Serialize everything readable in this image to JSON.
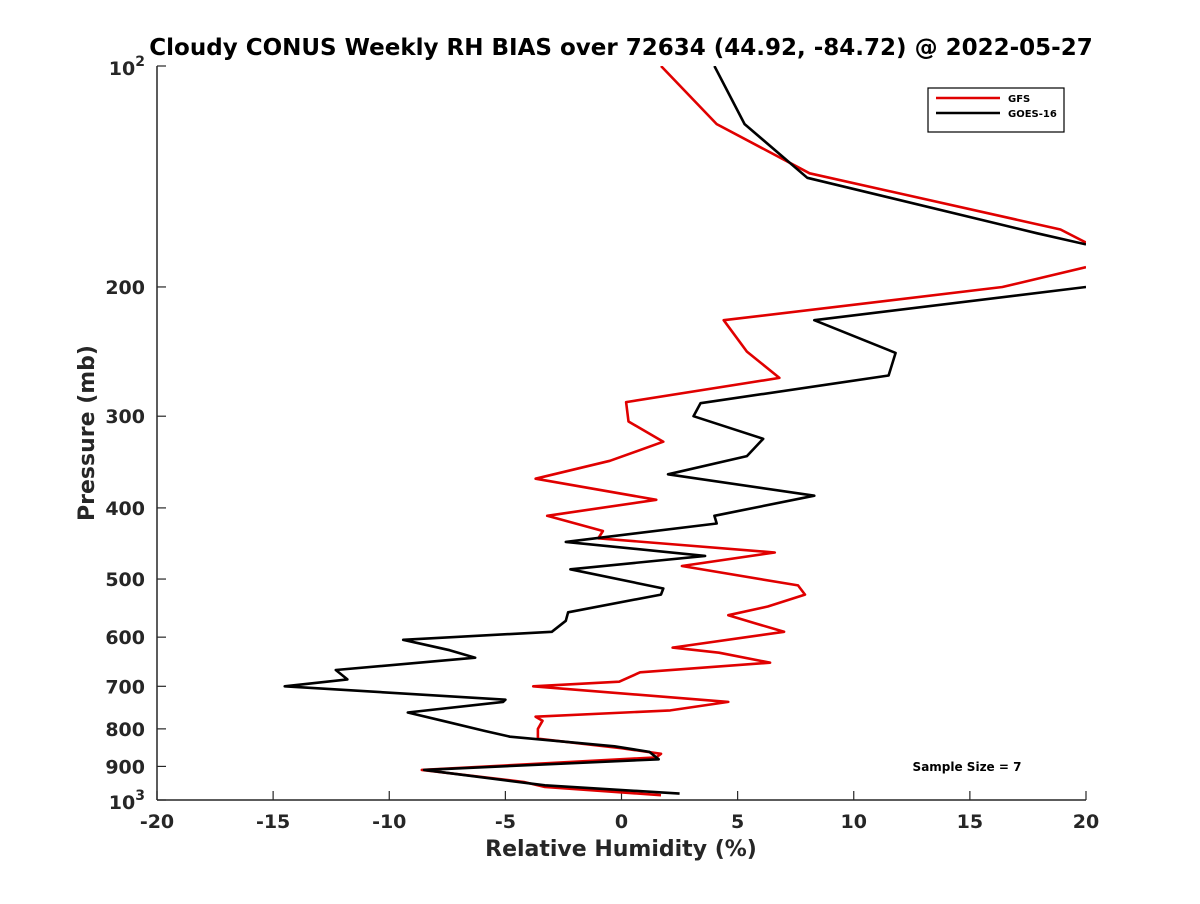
{
  "chart_data": {
    "type": "line",
    "title": "Cloudy CONUS Weekly RH BIAS over 72634 (44.92, -84.72) @ 2022-05-27",
    "xlabel": "Relative Humidity (%)",
    "ylabel": "Pressure (mb)",
    "xlim": [
      -20,
      20
    ],
    "ylim": [
      100,
      1000
    ],
    "yscale": "log",
    "y_reversed": true,
    "grid": false,
    "legend_position": "top-right",
    "x_ticks": [
      -20,
      -15,
      -10,
      -5,
      0,
      5,
      10,
      15,
      20
    ],
    "x_tick_labels": [
      "-20",
      "-15",
      "-10",
      "-5",
      "0",
      "5",
      "10",
      "15",
      "20"
    ],
    "y_ticks": [
      100,
      200,
      300,
      400,
      500,
      600,
      700,
      800,
      900,
      1000
    ],
    "y_tick_labels": [
      {
        "base": "10",
        "exp": "2"
      },
      {
        "base": "200"
      },
      {
        "base": "300"
      },
      {
        "base": "400"
      },
      {
        "base": "500"
      },
      {
        "base": "600"
      },
      {
        "base": "700"
      },
      {
        "base": "800"
      },
      {
        "base": "900"
      },
      {
        "base": "10",
        "exp": "3"
      }
    ],
    "annotation": "Sample Size = 7",
    "series": [
      {
        "name": "GFS",
        "color": "#e00000",
        "points": [
          [
            1.7,
            985
          ],
          [
            -3.3,
            960
          ],
          [
            -4.2,
            945
          ],
          [
            -8.6,
            910
          ],
          [
            1.5,
            875
          ],
          [
            1.7,
            865
          ],
          [
            0,
            850
          ],
          [
            -3.6,
            825
          ],
          [
            -3.6,
            800
          ],
          [
            -3.4,
            780
          ],
          [
            -3.7,
            770
          ],
          [
            2.1,
            755
          ],
          [
            4.6,
            735
          ],
          [
            -3.8,
            700
          ],
          [
            -0.1,
            690
          ],
          [
            0.8,
            670
          ],
          [
            6.4,
            650
          ],
          [
            4.2,
            630
          ],
          [
            2.2,
            620
          ],
          [
            7.0,
            590
          ],
          [
            5.8,
            575
          ],
          [
            4.6,
            560
          ],
          [
            6.3,
            545
          ],
          [
            7.9,
            525
          ],
          [
            7.6,
            510
          ],
          [
            2.6,
            480
          ],
          [
            6.6,
            460
          ],
          [
            -1.0,
            440
          ],
          [
            -0.8,
            430
          ],
          [
            -3.2,
            410
          ],
          [
            1.5,
            390
          ],
          [
            -3.7,
            365
          ],
          [
            -0.5,
            345
          ],
          [
            1.8,
            325
          ],
          [
            0.3,
            305
          ],
          [
            0.2,
            287
          ],
          [
            6.8,
            266
          ],
          [
            5.4,
            245
          ],
          [
            4.4,
            222
          ],
          [
            16.4,
            200
          ],
          [
            20.0,
            188
          ]
        ]
      },
      {
        "name": "GOES-16",
        "color": "#000000",
        "points": [
          [
            2.5,
            980
          ],
          [
            -3.3,
            955
          ],
          [
            -5.0,
            940
          ],
          [
            -8.5,
            910
          ],
          [
            1.6,
            880
          ],
          [
            1.2,
            860
          ],
          [
            -0.3,
            845
          ],
          [
            -4.8,
            820
          ],
          [
            -5.9,
            805
          ],
          [
            -7.7,
            780
          ],
          [
            -9.2,
            760
          ],
          [
            -5.1,
            735
          ],
          [
            -5.0,
            730
          ],
          [
            -14.5,
            700
          ],
          [
            -11.8,
            685
          ],
          [
            -12.3,
            665
          ],
          [
            -6.3,
            640
          ],
          [
            -7.4,
            625
          ],
          [
            -9.4,
            605
          ],
          [
            -3.0,
            590
          ],
          [
            -2.4,
            570
          ],
          [
            -2.3,
            555
          ],
          [
            1.7,
            525
          ],
          [
            1.8,
            515
          ],
          [
            -2.2,
            485
          ],
          [
            3.6,
            465
          ],
          [
            -2.4,
            445
          ],
          [
            4.1,
            420
          ],
          [
            4.0,
            410
          ],
          [
            8.3,
            385
          ],
          [
            2.0,
            360
          ],
          [
            5.4,
            340
          ],
          [
            6.1,
            322
          ],
          [
            3.1,
            300
          ],
          [
            3.4,
            288
          ],
          [
            11.5,
            264
          ],
          [
            11.8,
            246
          ],
          [
            8.3,
            222
          ],
          [
            20.0,
            200
          ]
        ]
      },
      {
        "name": "",
        "color": "#e00000",
        "points": [
          [
            1.7,
            100
          ],
          [
            4.1,
            120
          ],
          [
            8.1,
            140
          ],
          [
            18.9,
            167
          ],
          [
            20.0,
            174
          ]
        ]
      },
      {
        "name": "",
        "color": "#000000",
        "points": [
          [
            4.0,
            100
          ],
          [
            5.3,
            120
          ],
          [
            8.0,
            142
          ],
          [
            17.9,
            169
          ],
          [
            20.0,
            175
          ]
        ]
      }
    ]
  }
}
